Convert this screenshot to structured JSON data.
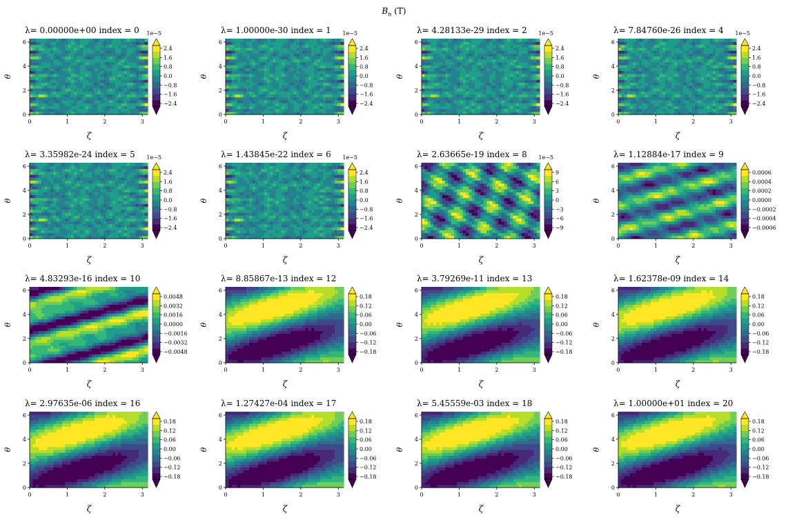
{
  "figure": {
    "suptitle_symbol": "B",
    "suptitle_sub": "n",
    "suptitle_unit": "(T)"
  },
  "chart_data": [
    {
      "type": "heatmap",
      "title": "λ= 0.00000e+00 index = 0",
      "xlabel": "ζ",
      "ylabel": "θ",
      "xlim": [
        0,
        3.1416
      ],
      "ylim": [
        0,
        6.2832
      ],
      "x_ticks": [
        "0",
        "1",
        "2",
        "3"
      ],
      "y_ticks": [
        "0",
        "2",
        "4",
        "6"
      ],
      "colorbar_ticks": [
        "2.4",
        "1.6",
        "0.8",
        "0.0",
        "−0.8",
        "−1.6",
        "−2.4"
      ],
      "colorbar_offset": "1e−5",
      "vmin": -2.4e-05,
      "vmax": 2.4e-05,
      "pattern": "fine"
    },
    {
      "type": "heatmap",
      "title": "λ= 1.00000e-30 index = 1",
      "xlabel": "ζ",
      "ylabel": "θ",
      "xlim": [
        0,
        3.1416
      ],
      "ylim": [
        0,
        6.2832
      ],
      "x_ticks": [
        "0",
        "1",
        "2",
        "3"
      ],
      "y_ticks": [
        "0",
        "2",
        "4",
        "6"
      ],
      "colorbar_ticks": [
        "2.4",
        "1.6",
        "0.8",
        "0.0",
        "−0.8",
        "−1.6",
        "−2.4"
      ],
      "colorbar_offset": "1e−5",
      "vmin": -2.4e-05,
      "vmax": 2.4e-05,
      "pattern": "fine"
    },
    {
      "type": "heatmap",
      "title": "λ= 4.28133e-29 index = 2",
      "xlabel": "ζ",
      "ylabel": "θ",
      "xlim": [
        0,
        3.1416
      ],
      "ylim": [
        0,
        6.2832
      ],
      "x_ticks": [
        "0",
        "1",
        "2",
        "3"
      ],
      "y_ticks": [
        "0",
        "2",
        "4",
        "6"
      ],
      "colorbar_ticks": [
        "2.4",
        "1.6",
        "0.8",
        "0.0",
        "−0.8",
        "−1.6",
        "−2.4"
      ],
      "colorbar_offset": "1e−5",
      "vmin": -2.4e-05,
      "vmax": 2.4e-05,
      "pattern": "fine"
    },
    {
      "type": "heatmap",
      "title": "λ= 7.84760e-26 index = 4",
      "xlabel": "ζ",
      "ylabel": "θ",
      "xlim": [
        0,
        3.1416
      ],
      "ylim": [
        0,
        6.2832
      ],
      "x_ticks": [
        "0",
        "1",
        "2",
        "3"
      ],
      "y_ticks": [
        "0",
        "2",
        "4",
        "6"
      ],
      "colorbar_ticks": [
        "2.4",
        "1.6",
        "0.8",
        "0.0",
        "−0.8",
        "−1.6",
        "−2.4"
      ],
      "colorbar_offset": "1e−5",
      "vmin": -2.4e-05,
      "vmax": 2.4e-05,
      "pattern": "fine"
    },
    {
      "type": "heatmap",
      "title": "λ= 3.35982e-24 index = 5",
      "xlabel": "ζ",
      "ylabel": "θ",
      "xlim": [
        0,
        3.1416
      ],
      "ylim": [
        0,
        6.2832
      ],
      "x_ticks": [
        "0",
        "1",
        "2",
        "3"
      ],
      "y_ticks": [
        "0",
        "2",
        "4",
        "6"
      ],
      "colorbar_ticks": [
        "2.4",
        "1.6",
        "0.8",
        "0.0",
        "−0.8",
        "−1.6",
        "−2.4"
      ],
      "colorbar_offset": "1e−5",
      "vmin": -2.4e-05,
      "vmax": 2.4e-05,
      "pattern": "fine"
    },
    {
      "type": "heatmap",
      "title": "λ= 1.43845e-22 index = 6",
      "xlabel": "ζ",
      "ylabel": "θ",
      "xlim": [
        0,
        3.1416
      ],
      "ylim": [
        0,
        6.2832
      ],
      "x_ticks": [
        "0",
        "1",
        "2",
        "3"
      ],
      "y_ticks": [
        "0",
        "2",
        "4",
        "6"
      ],
      "colorbar_ticks": [
        "2.4",
        "1.6",
        "0.8",
        "0.0",
        "−0.8",
        "−1.6",
        "−2.4"
      ],
      "colorbar_offset": "1e−5",
      "vmin": -2.4e-05,
      "vmax": 2.4e-05,
      "pattern": "fine"
    },
    {
      "type": "heatmap",
      "title": "λ= 2.63665e-19 index = 8",
      "xlabel": "ζ",
      "ylabel": "θ",
      "xlim": [
        0,
        3.1416
      ],
      "ylim": [
        0,
        6.2832
      ],
      "x_ticks": [
        "0",
        "1",
        "2",
        "3"
      ],
      "y_ticks": [
        "0",
        "2",
        "4",
        "6"
      ],
      "colorbar_ticks": [
        "9",
        "6",
        "3",
        "0",
        "−3",
        "−6",
        "−9"
      ],
      "colorbar_offset": "1e−5",
      "vmin": -9e-05,
      "vmax": 9e-05,
      "pattern": "stripes"
    },
    {
      "type": "heatmap",
      "title": "λ= 1.12884e-17 index = 9",
      "xlabel": "ζ",
      "ylabel": "θ",
      "xlim": [
        0,
        3.1416
      ],
      "ylim": [
        0,
        6.2832
      ],
      "x_ticks": [
        "0",
        "1",
        "2",
        "3"
      ],
      "y_ticks": [
        "0",
        "2",
        "4",
        "6"
      ],
      "colorbar_ticks": [
        "0.0006",
        "0.0004",
        "0.0002",
        "0.0000",
        "−0.0002",
        "−0.0004",
        "−0.0006"
      ],
      "colorbar_offset": "",
      "vmin": -0.0006,
      "vmax": 0.0006,
      "pattern": "bands"
    },
    {
      "type": "heatmap",
      "title": "λ= 4.83293e-16 index = 10",
      "xlabel": "ζ",
      "ylabel": "θ",
      "xlim": [
        0,
        3.1416
      ],
      "ylim": [
        0,
        6.2832
      ],
      "x_ticks": [
        "0",
        "1",
        "2",
        "3"
      ],
      "y_ticks": [
        "0",
        "2",
        "4",
        "6"
      ],
      "colorbar_ticks": [
        "0.0048",
        "0.0032",
        "0.0016",
        "0.0000",
        "−0.0016",
        "−0.0032",
        "−0.0048"
      ],
      "colorbar_offset": "",
      "vmin": -0.0048,
      "vmax": 0.0048,
      "pattern": "bands2"
    },
    {
      "type": "heatmap",
      "title": "λ= 8.85867e-13 index = 12",
      "xlabel": "ζ",
      "ylabel": "θ",
      "xlim": [
        0,
        3.1416
      ],
      "ylim": [
        0,
        6.2832
      ],
      "x_ticks": [
        "0",
        "1",
        "2",
        "3"
      ],
      "y_ticks": [
        "0",
        "2",
        "4",
        "6"
      ],
      "colorbar_ticks": [
        "0.18",
        "0.12",
        "0.06",
        "0.00",
        "−0.06",
        "−0.12",
        "−0.18"
      ],
      "colorbar_offset": "",
      "vmin": -0.18,
      "vmax": 0.18,
      "pattern": "smooth"
    },
    {
      "type": "heatmap",
      "title": "λ= 3.79269e-11 index = 13",
      "xlabel": "ζ",
      "ylabel": "θ",
      "xlim": [
        0,
        3.1416
      ],
      "ylim": [
        0,
        6.2832
      ],
      "x_ticks": [
        "0",
        "1",
        "2",
        "3"
      ],
      "y_ticks": [
        "0",
        "2",
        "4",
        "6"
      ],
      "colorbar_ticks": [
        "0.18",
        "0.12",
        "0.06",
        "0.00",
        "−0.06",
        "−0.12",
        "−0.18"
      ],
      "colorbar_offset": "",
      "vmin": -0.18,
      "vmax": 0.18,
      "pattern": "smooth"
    },
    {
      "type": "heatmap",
      "title": "λ= 1.62378e-09 index = 14",
      "xlabel": "ζ",
      "ylabel": "θ",
      "xlim": [
        0,
        3.1416
      ],
      "ylim": [
        0,
        6.2832
      ],
      "x_ticks": [
        "0",
        "1",
        "2",
        "3"
      ],
      "y_ticks": [
        "0",
        "2",
        "4",
        "6"
      ],
      "colorbar_ticks": [
        "0.18",
        "0.12",
        "0.06",
        "0.00",
        "−0.06",
        "−0.12",
        "−0.18"
      ],
      "colorbar_offset": "",
      "vmin": -0.18,
      "vmax": 0.18,
      "pattern": "smooth"
    },
    {
      "type": "heatmap",
      "title": "λ= 2.97635e-06 index = 16",
      "xlabel": "ζ",
      "ylabel": "θ",
      "xlim": [
        0,
        3.1416
      ],
      "ylim": [
        0,
        6.2832
      ],
      "x_ticks": [
        "0",
        "1",
        "2",
        "3"
      ],
      "y_ticks": [
        "0",
        "2",
        "4",
        "6"
      ],
      "colorbar_ticks": [
        "0.18",
        "0.12",
        "0.06",
        "0.00",
        "−0.06",
        "−0.12",
        "−0.18"
      ],
      "colorbar_offset": "",
      "vmin": -0.18,
      "vmax": 0.18,
      "pattern": "smooth"
    },
    {
      "type": "heatmap",
      "title": "λ= 1.27427e-04 index = 17",
      "xlabel": "ζ",
      "ylabel": "θ",
      "xlim": [
        0,
        3.1416
      ],
      "ylim": [
        0,
        6.2832
      ],
      "x_ticks": [
        "0",
        "1",
        "2",
        "3"
      ],
      "y_ticks": [
        "0",
        "2",
        "4",
        "6"
      ],
      "colorbar_ticks": [
        "0.18",
        "0.12",
        "0.06",
        "0.00",
        "−0.06",
        "−0.12",
        "−0.18"
      ],
      "colorbar_offset": "",
      "vmin": -0.18,
      "vmax": 0.18,
      "pattern": "smooth"
    },
    {
      "type": "heatmap",
      "title": "λ= 5.45559e-03 index = 18",
      "xlabel": "ζ",
      "ylabel": "θ",
      "xlim": [
        0,
        3.1416
      ],
      "ylim": [
        0,
        6.2832
      ],
      "x_ticks": [
        "0",
        "1",
        "2",
        "3"
      ],
      "y_ticks": [
        "0",
        "2",
        "4",
        "6"
      ],
      "colorbar_ticks": [
        "0.18",
        "0.12",
        "0.06",
        "0.00",
        "−0.06",
        "−0.12",
        "−0.18"
      ],
      "colorbar_offset": "",
      "vmin": -0.18,
      "vmax": 0.18,
      "pattern": "smooth"
    },
    {
      "type": "heatmap",
      "title": "λ= 1.00000e+01 index = 20",
      "xlabel": "ζ",
      "ylabel": "θ",
      "xlim": [
        0,
        3.1416
      ],
      "ylim": [
        0,
        6.2832
      ],
      "x_ticks": [
        "0",
        "1",
        "2",
        "3"
      ],
      "y_ticks": [
        "0",
        "2",
        "4",
        "6"
      ],
      "colorbar_ticks": [
        "0.18",
        "0.12",
        "0.06",
        "0.00",
        "−0.06",
        "−0.12",
        "−0.18"
      ],
      "colorbar_offset": "",
      "vmin": -0.18,
      "vmax": 0.18,
      "pattern": "smooth"
    }
  ]
}
